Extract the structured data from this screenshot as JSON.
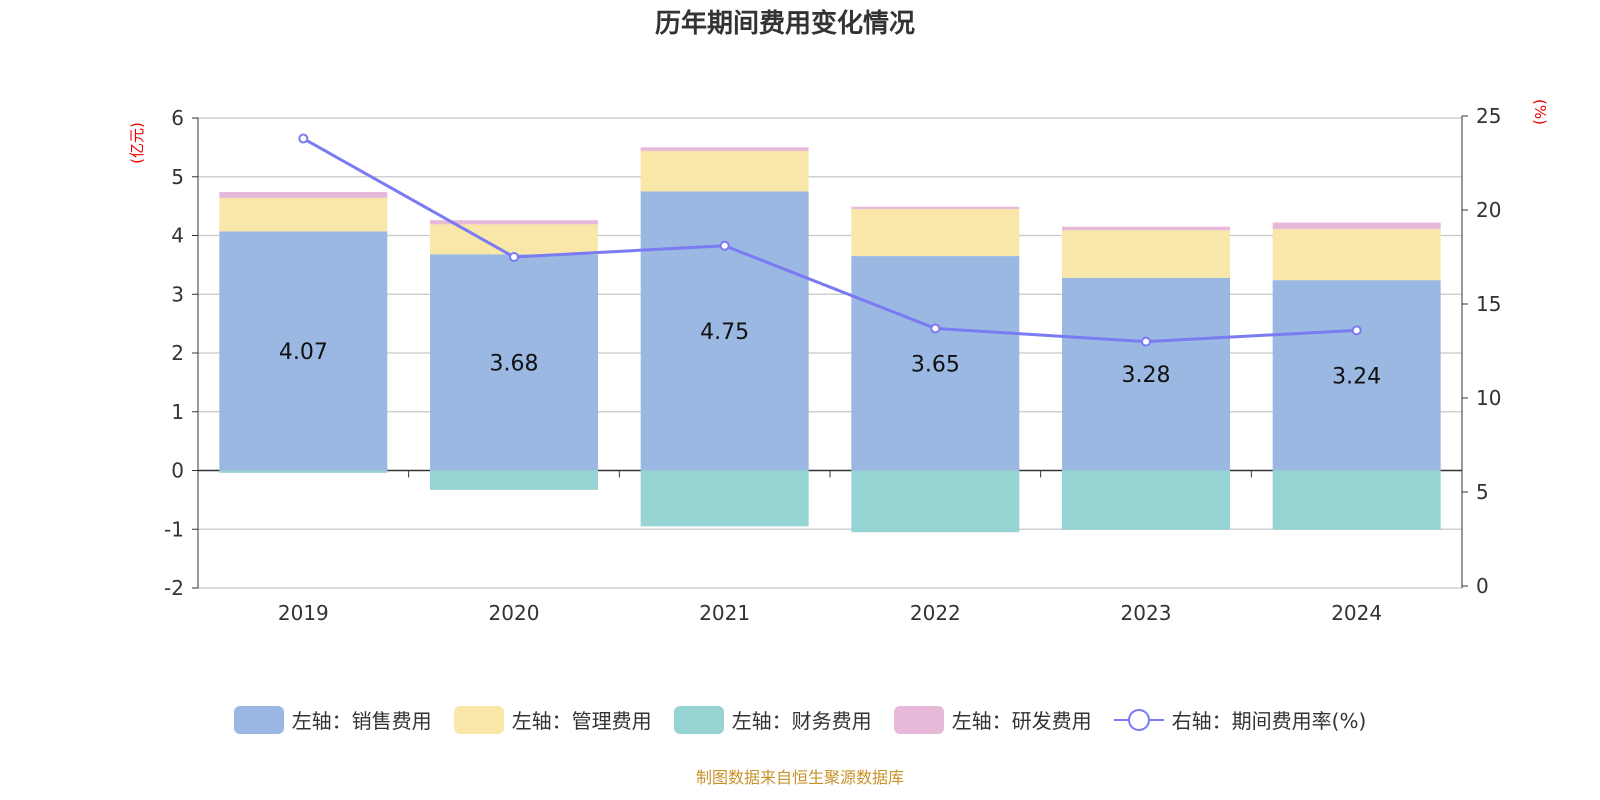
{
  "chart_data": {
    "type": "bar",
    "title": "历年期间费用变化情况",
    "left_unit": "(亿元)",
    "right_unit": "(%)",
    "categories": [
      "2019",
      "2020",
      "2021",
      "2022",
      "2023",
      "2024"
    ],
    "ylim_left": [
      -2,
      6
    ],
    "yticks_left": [
      -2,
      -1,
      0,
      1,
      2,
      3,
      4,
      5,
      6
    ],
    "ylim_right": [
      0,
      25
    ],
    "yticks_right": [
      0,
      5,
      10,
      15,
      20,
      25
    ],
    "grid": true,
    "legend_position": "bottom",
    "series": [
      {
        "name": "左轴：销售费用",
        "type": "bar",
        "color": "#9bb8e2",
        "values": [
          4.07,
          3.68,
          4.75,
          3.65,
          3.28,
          3.24
        ],
        "labels": [
          "4.07",
          "3.68",
          "4.75",
          "3.65",
          "3.28",
          "3.24"
        ]
      },
      {
        "name": "左轴：管理费用",
        "type": "bar",
        "color": "#f8e7a8",
        "values": [
          0.57,
          0.51,
          0.69,
          0.8,
          0.81,
          0.87
        ]
      },
      {
        "name": "左轴：财务费用",
        "type": "bar",
        "color": "#96d3d3",
        "values": [
          -0.04,
          -0.33,
          -0.95,
          -1.05,
          -1.01,
          -1.01
        ]
      },
      {
        "name": "左轴：研发费用",
        "type": "bar",
        "color": "#e7b8d8",
        "values": [
          0.1,
          0.07,
          0.06,
          0.04,
          0.06,
          0.11
        ]
      },
      {
        "name": "右轴：期间费用率(%)",
        "type": "line",
        "color": "#7a7af2",
        "values": [
          23.8,
          17.5,
          18.1,
          13.7,
          13.0,
          13.6
        ]
      }
    ]
  },
  "source": "制图数据来自恒生聚源数据库"
}
